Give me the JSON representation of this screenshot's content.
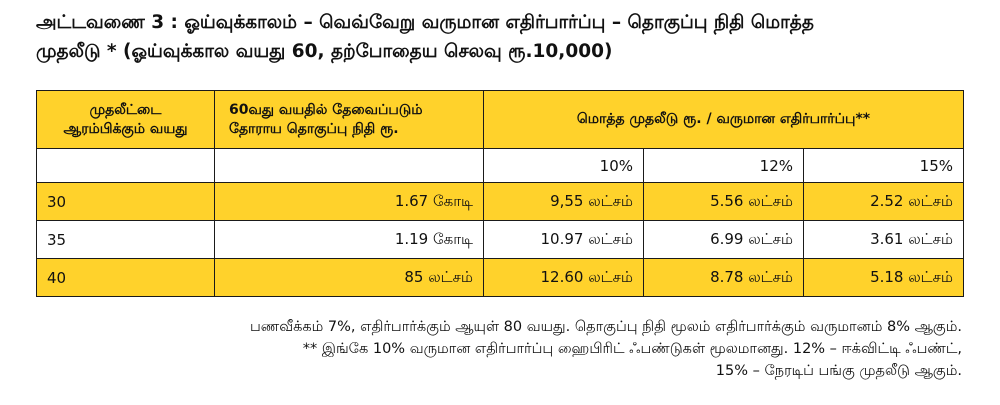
{
  "title_line1": "அட்டவணை 3 : ஓய்வுக்காலம் – வெவ்வேறு வருமான எதிர்பார்ப்பு – தொகுப்பு நிதி மொத்த",
  "title_line2": "முதலீடு * (ஓய்வுக்கால வயது 60, தற்போதைய செலவு ரூ.10,000)",
  "headers": {
    "col1_line1": "முதலீட்டை",
    "col1_line2": "ஆரம்பிக்கும் வயது",
    "col2_line1": "60வது வயதில் தேவைப்படும்",
    "col2_line2": "தோராய தொகுப்பு நிதி ரூ.",
    "col3": "மொத்த முதலீடு ரூ. / வருமான எதிர்பார்ப்பு**"
  },
  "percents": [
    "10%",
    "12%",
    "15%"
  ],
  "rows": [
    {
      "age": "30",
      "corpus": "1.67 கோடி",
      "r10": "9,55 லட்சம்",
      "r12": "5.56 லட்சம்",
      "r15": "2.52 லட்சம்"
    },
    {
      "age": "35",
      "corpus": "1.19 கோடி",
      "r10": "10.97 லட்சம்",
      "r12": "6.99 லட்சம்",
      "r15": "3.61 லட்சம்"
    },
    {
      "age": "40",
      "corpus": "85 லட்சம்",
      "r10": "12.60 லட்சம்",
      "r12": "8.78 லட்சம்",
      "r15": "5.18 லட்சம்"
    }
  ],
  "notes": [
    "பணவீக்கம் 7%, எதிர்பார்க்கும் ஆயுள் 80 வயது. தொகுப்பு நிதி மூலம் எதிர்பார்க்கும் வருமானம் 8% ஆகும்.",
    "** இங்கே 10% வருமான எதிர்பார்ப்பு ஹைபிரிட் ஃபண்டுகள் மூலமானது. 12% – ஈக்விட்டி ஃபண்ட்,",
    "15% – நேரடிப் பங்கு முதலீடு ஆகும்."
  ],
  "colors": {
    "header_bg": "#ffd22b",
    "row_alt_bg": "#ffd22b",
    "border": "#1a1a1a"
  }
}
